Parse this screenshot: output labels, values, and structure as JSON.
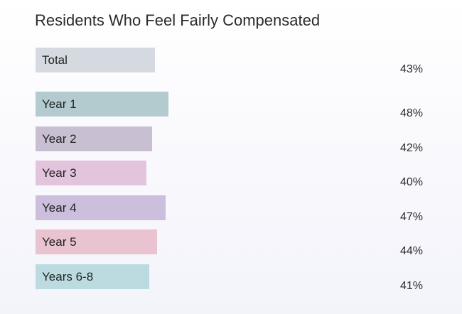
{
  "chart_data": {
    "type": "bar",
    "orientation": "horizontal",
    "title": "Residents Who Feel Fairly Compensated",
    "xlabel": "",
    "ylabel": "",
    "xlim": [
      0,
      100
    ],
    "grid": false,
    "categories": [
      "Total",
      "Year 1",
      "Year 2",
      "Year 3",
      "Year 4",
      "Year 5",
      "Years 6-8"
    ],
    "values": [
      43,
      48,
      42,
      40,
      47,
      44,
      41
    ],
    "value_labels": [
      "43%",
      "48%",
      "42%",
      "40%",
      "47%",
      "44%",
      "41%"
    ],
    "colors": [
      "#d5dae0",
      "#b3cbcf",
      "#c8bfd3",
      "#e3c4dd",
      "#cbbfdd",
      "#e9c3cf",
      "#bcdbe1"
    ]
  }
}
